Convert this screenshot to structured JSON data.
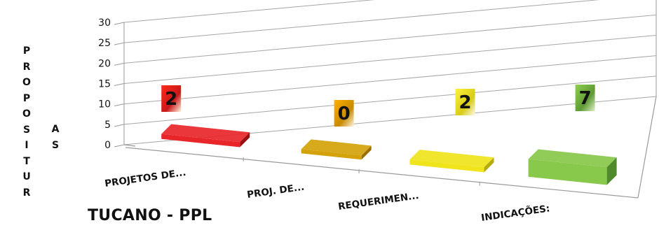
{
  "ylabel_col1": [
    "P",
    "R",
    "O",
    "P",
    "O",
    "S",
    "I",
    "T",
    "U",
    "R"
  ],
  "ylabel_col2": [
    "A",
    "S"
  ],
  "subtitle": "TUCANO - PPL",
  "chart_data": {
    "type": "bar",
    "categories": [
      "PROJETOS DE...",
      "PROJ. DE...",
      "REQUERIMEN...",
      "INDICAÇÕES:"
    ],
    "values": [
      2,
      0,
      2,
      7
    ],
    "ylim": [
      0,
      30
    ],
    "yticks": [
      0,
      5,
      10,
      15,
      20,
      25,
      30
    ],
    "grid": true,
    "colors": [
      "#e8262a",
      "#d4a20a",
      "#f0e41c",
      "#88c84a"
    ],
    "data_labels": [
      "2",
      "0",
      "2",
      "7"
    ]
  }
}
